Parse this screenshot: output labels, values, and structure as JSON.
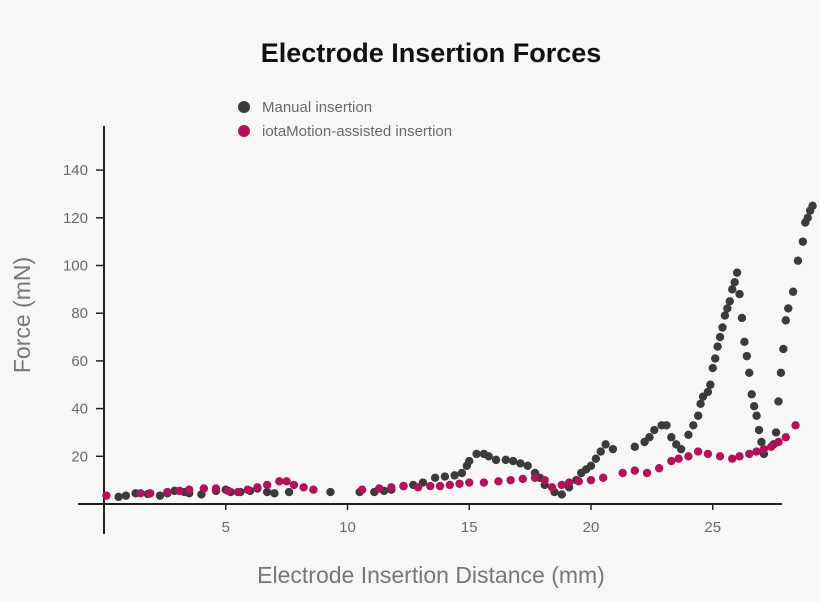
{
  "chart_data": {
    "type": "scatter",
    "title": "Electrode Insertion Forces",
    "xlabel": "Electrode Insertion Distance (mm)",
    "ylabel": "Force (mN)",
    "xlim": [
      0,
      28.8
    ],
    "ylim": [
      -5,
      155
    ],
    "x_ticks": [
      5,
      10,
      15,
      20,
      25
    ],
    "y_ticks": [
      20,
      40,
      60,
      80,
      100,
      120,
      140
    ],
    "grid": false,
    "legend_position": "top-center",
    "series": [
      {
        "name": "Manual insertion",
        "color": "#3b3b3b",
        "points": [
          [
            0.6,
            3
          ],
          [
            0.9,
            3.5
          ],
          [
            1.3,
            4.5
          ],
          [
            1.8,
            4.2
          ],
          [
            2.3,
            3.5
          ],
          [
            2.6,
            4.5
          ],
          [
            2.9,
            5.5
          ],
          [
            3.3,
            5
          ],
          [
            3.5,
            4.5
          ],
          [
            4,
            4
          ],
          [
            4.6,
            5.5
          ],
          [
            5,
            6
          ],
          [
            5.2,
            5
          ],
          [
            5.6,
            5
          ],
          [
            6,
            5.5
          ],
          [
            6.3,
            6.5
          ],
          [
            6.7,
            5
          ],
          [
            7,
            4.5
          ],
          [
            7.6,
            5
          ],
          [
            9.3,
            5
          ],
          [
            10.5,
            5
          ],
          [
            11.1,
            5
          ],
          [
            11.5,
            5.5
          ],
          [
            11.8,
            6
          ],
          [
            12.3,
            7.5
          ],
          [
            12.7,
            8
          ],
          [
            13.1,
            9
          ],
          [
            13.6,
            11
          ],
          [
            14,
            11.5
          ],
          [
            14.4,
            12
          ],
          [
            14.7,
            13
          ],
          [
            14.9,
            16
          ],
          [
            15,
            18
          ],
          [
            15.3,
            21
          ],
          [
            15.6,
            21
          ],
          [
            15.8,
            20
          ],
          [
            16.1,
            18.5
          ],
          [
            16.5,
            18.5
          ],
          [
            16.8,
            18
          ],
          [
            17.1,
            17
          ],
          [
            17.4,
            16
          ],
          [
            17.7,
            13
          ],
          [
            17.9,
            11
          ],
          [
            18.1,
            8
          ],
          [
            18.5,
            5
          ],
          [
            18.8,
            4
          ],
          [
            19.1,
            7
          ],
          [
            19.4,
            10
          ],
          [
            19.6,
            13
          ],
          [
            19.8,
            14.5
          ],
          [
            20,
            16
          ],
          [
            20.2,
            19
          ],
          [
            20.4,
            22
          ],
          [
            20.6,
            25
          ],
          [
            20.9,
            23
          ],
          [
            21.8,
            24
          ],
          [
            22.2,
            26
          ],
          [
            22.4,
            28
          ],
          [
            22.6,
            31
          ],
          [
            22.9,
            33
          ],
          [
            23.1,
            33
          ],
          [
            23.3,
            28
          ],
          [
            23.5,
            25
          ],
          [
            23.7,
            23
          ],
          [
            24,
            29
          ],
          [
            24.2,
            33
          ],
          [
            24.4,
            37
          ],
          [
            24.5,
            42
          ],
          [
            24.6,
            45
          ],
          [
            24.8,
            47
          ],
          [
            24.9,
            50
          ],
          [
            25,
            57
          ],
          [
            25.1,
            61
          ],
          [
            25.2,
            66
          ],
          [
            25.3,
            70
          ],
          [
            25.4,
            74
          ],
          [
            25.5,
            79
          ],
          [
            25.6,
            82
          ],
          [
            25.7,
            85
          ],
          [
            25.8,
            90
          ],
          [
            25.9,
            93
          ],
          [
            26,
            97
          ],
          [
            26.1,
            88
          ],
          [
            26.2,
            78
          ],
          [
            26.3,
            68
          ],
          [
            26.4,
            62
          ],
          [
            26.5,
            55
          ],
          [
            26.6,
            46
          ],
          [
            26.7,
            41
          ],
          [
            26.8,
            37
          ],
          [
            26.9,
            31
          ],
          [
            27,
            26
          ],
          [
            27.1,
            21
          ],
          [
            27.5,
            25
          ],
          [
            27.6,
            30
          ],
          [
            27.7,
            43
          ],
          [
            27.8,
            55
          ],
          [
            27.9,
            65
          ],
          [
            28,
            77
          ],
          [
            28.1,
            82
          ],
          [
            28.3,
            89
          ],
          [
            28.5,
            102
          ],
          [
            28.7,
            110
          ],
          [
            28.8,
            118
          ],
          [
            28.9,
            120
          ],
          [
            29,
            123
          ],
          [
            29.1,
            125
          ]
        ]
      },
      {
        "name": "iotaMotion-assisted insertion",
        "color": "#b3115a",
        "points": [
          [
            0.1,
            3.5
          ],
          [
            1.5,
            4.5
          ],
          [
            1.9,
            4.5
          ],
          [
            2.6,
            5
          ],
          [
            3.1,
            5.5
          ],
          [
            3.5,
            6
          ],
          [
            4.1,
            6.5
          ],
          [
            4.6,
            6.5
          ],
          [
            5.1,
            5.5
          ],
          [
            5.5,
            5
          ],
          [
            5.9,
            6
          ],
          [
            6.3,
            7
          ],
          [
            6.7,
            8
          ],
          [
            7.2,
            9.5
          ],
          [
            7.5,
            9.5
          ],
          [
            7.8,
            8
          ],
          [
            8.2,
            7
          ],
          [
            8.6,
            6
          ],
          [
            10.6,
            6
          ],
          [
            11.3,
            6.5
          ],
          [
            11.8,
            7
          ],
          [
            12.3,
            7.5
          ],
          [
            12.9,
            7
          ],
          [
            13.4,
            7.5
          ],
          [
            13.8,
            7.5
          ],
          [
            14.2,
            8
          ],
          [
            14.6,
            8.5
          ],
          [
            15,
            9
          ],
          [
            15.6,
            9
          ],
          [
            16.2,
            9.5
          ],
          [
            16.7,
            10
          ],
          [
            17.2,
            10.5
          ],
          [
            17.7,
            11
          ],
          [
            18.1,
            10
          ],
          [
            18.4,
            7
          ],
          [
            18.8,
            8
          ],
          [
            19.1,
            9
          ],
          [
            19.5,
            9.5
          ],
          [
            20,
            10
          ],
          [
            20.5,
            11
          ],
          [
            21.3,
            13
          ],
          [
            21.8,
            14
          ],
          [
            22.3,
            13
          ],
          [
            22.8,
            15
          ],
          [
            23.3,
            18
          ],
          [
            23.6,
            19
          ],
          [
            24,
            20
          ],
          [
            24.4,
            22
          ],
          [
            24.8,
            21
          ],
          [
            25.3,
            20
          ],
          [
            25.8,
            19
          ],
          [
            26.1,
            20
          ],
          [
            26.5,
            21
          ],
          [
            26.8,
            22
          ],
          [
            27.1,
            23
          ],
          [
            27.4,
            24
          ],
          [
            27.7,
            26
          ],
          [
            28,
            28
          ],
          [
            28.4,
            33
          ]
        ]
      }
    ]
  }
}
